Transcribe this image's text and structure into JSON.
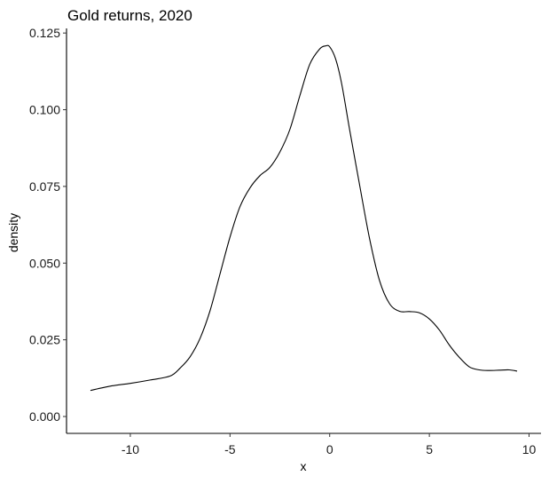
{
  "chart_data": {
    "type": "line",
    "title": "Gold returns, 2020",
    "xlabel": "x",
    "ylabel": "density",
    "xlim": [
      -13.2,
      10.6
    ],
    "ylim": [
      -0.0055,
      0.1265
    ],
    "x_ticks": [
      -10,
      -5,
      0,
      5,
      10
    ],
    "x_tick_labels": [
      "-10",
      "-5",
      "0",
      "5",
      "10"
    ],
    "y_ticks": [
      0.0,
      0.025,
      0.05,
      0.075,
      0.1,
      0.125
    ],
    "y_tick_labels": [
      "0.000",
      "0.025",
      "0.050",
      "0.075",
      "0.100",
      "0.125"
    ],
    "grid": false,
    "legend": "none",
    "line_color": "#000000",
    "series": [
      {
        "x": [
          -12.0,
          -11.0,
          -10.0,
          -9.0,
          -8.0,
          -7.5,
          -7.0,
          -6.5,
          -6.0,
          -5.5,
          -5.0,
          -4.5,
          -4.0,
          -3.5,
          -3.0,
          -2.5,
          -2.0,
          -1.5,
          -1.0,
          -0.5,
          -0.2,
          0.0,
          0.3,
          0.6,
          1.0,
          1.5,
          2.0,
          2.5,
          3.0,
          3.5,
          4.0,
          4.5,
          5.0,
          5.5,
          6.0,
          6.5,
          7.0,
          7.5,
          8.0,
          8.5,
          9.0,
          9.4
        ],
        "y": [
          0.0085,
          0.0099,
          0.0108,
          0.0119,
          0.0132,
          0.0158,
          0.0195,
          0.0255,
          0.0345,
          0.0465,
          0.0585,
          0.0684,
          0.0745,
          0.0785,
          0.0812,
          0.0862,
          0.0935,
          0.1045,
          0.1148,
          0.1198,
          0.1208,
          0.1205,
          0.1165,
          0.1085,
          0.0935,
          0.0755,
          0.058,
          0.0443,
          0.0368,
          0.0343,
          0.0342,
          0.0338,
          0.0318,
          0.0282,
          0.0233,
          0.0193,
          0.0162,
          0.0152,
          0.015,
          0.0151,
          0.0152,
          0.0148
        ]
      }
    ]
  }
}
